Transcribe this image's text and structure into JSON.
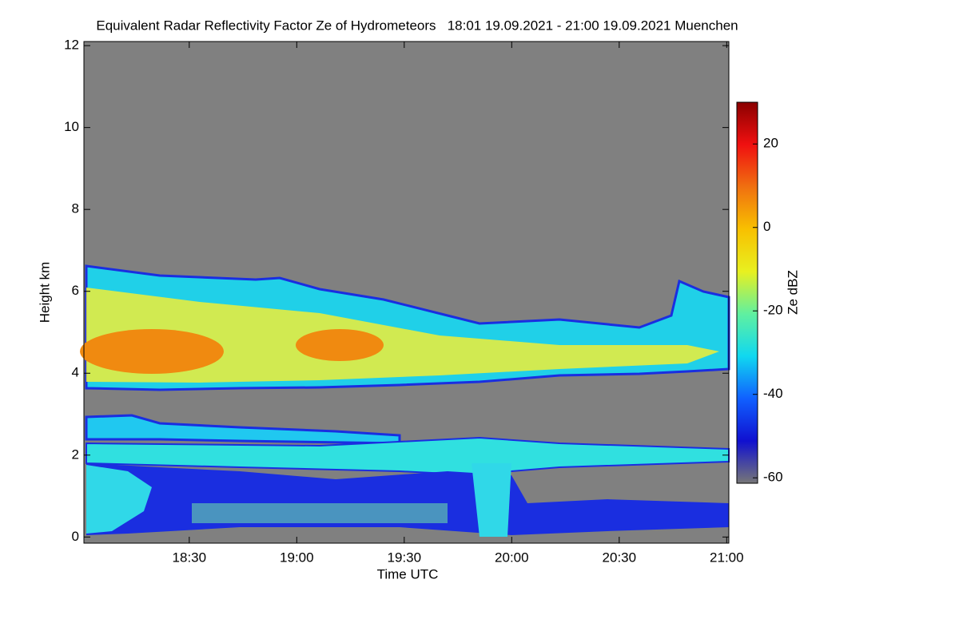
{
  "chart_data": {
    "type": "heatmap",
    "title": "Equivalent Radar Reflectivity Factor Ze of Hydrometeors   18:01 19.09.2021 - 21:00 19.09.2021 Muenchen",
    "x_label": "Time UTC",
    "y_label": "Height km",
    "xlim": [
      18.01,
      21.01
    ],
    "xticks": [
      {
        "value": 18.5,
        "label": "18:30"
      },
      {
        "value": 19,
        "label": "19:00"
      },
      {
        "value": 19.5,
        "label": "19:30"
      },
      {
        "value": 20,
        "label": "20:00"
      },
      {
        "value": 20.5,
        "label": "20:30"
      },
      {
        "value": 21,
        "label": "21:00"
      }
    ],
    "ylim": [
      -0.15,
      12.1
    ],
    "yticks": [
      0,
      2,
      4,
      6,
      8,
      10,
      12
    ],
    "colorbar_label": "Ze dBZ",
    "zlim": [
      -61.3,
      30
    ],
    "zticks": [
      -60,
      -40,
      -20,
      0,
      20
    ],
    "colormap": [
      "#777777",
      "#1010d0",
      "#1060ff",
      "#10d8f0",
      "#60f0a0",
      "#e8f020",
      "#f8c000",
      "#f07010",
      "#f01010",
      "#8a0000"
    ]
  }
}
